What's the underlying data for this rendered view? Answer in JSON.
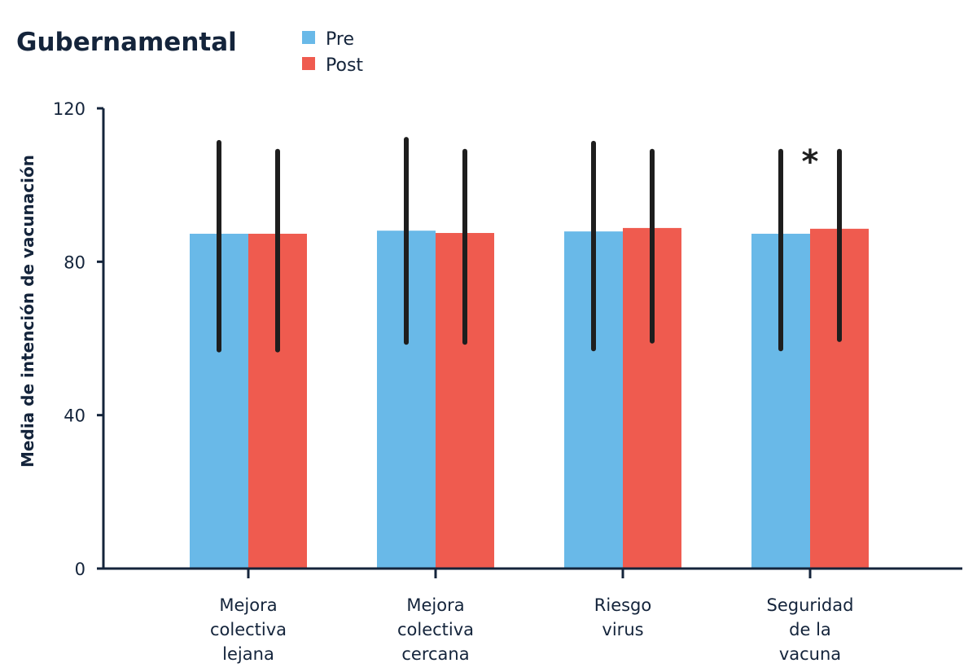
{
  "chart_data": {
    "type": "bar",
    "title": "Gubernamental",
    "xlabel": "",
    "ylabel": "Media de intención de vacunación",
    "ylim": [
      0,
      120
    ],
    "yticks": [
      0,
      40,
      80,
      120
    ],
    "grid": false,
    "legend_position": "top",
    "categories": [
      [
        "Mejora",
        "colectiva",
        "lejana"
      ],
      [
        "Mejora",
        "colectiva",
        "cercana"
      ],
      [
        "Riesgo",
        "virus"
      ],
      [
        "Seguridad",
        "de la",
        "vacuna"
      ]
    ],
    "series": [
      {
        "name": "Pre",
        "color": "#69b9e8",
        "values": [
          87.3,
          88.1,
          87.9,
          87.3
        ],
        "error_low": [
          57.0,
          59.0,
          57.3,
          57.3
        ],
        "error_high": [
          111.1,
          111.9,
          110.9,
          108.8
        ]
      },
      {
        "name": "Post",
        "color": "#ef5b4f",
        "values": [
          87.3,
          87.5,
          88.8,
          88.6
        ],
        "error_low": [
          57.0,
          59.0,
          59.3,
          59.7
        ],
        "error_high": [
          108.8,
          108.8,
          108.8,
          108.8
        ]
      }
    ],
    "annotations": [
      {
        "category_index": 3,
        "text": "*",
        "meaning": "significant difference"
      }
    ],
    "axis_color": "#14243b",
    "errorbar_color": "#1e1e1e"
  }
}
